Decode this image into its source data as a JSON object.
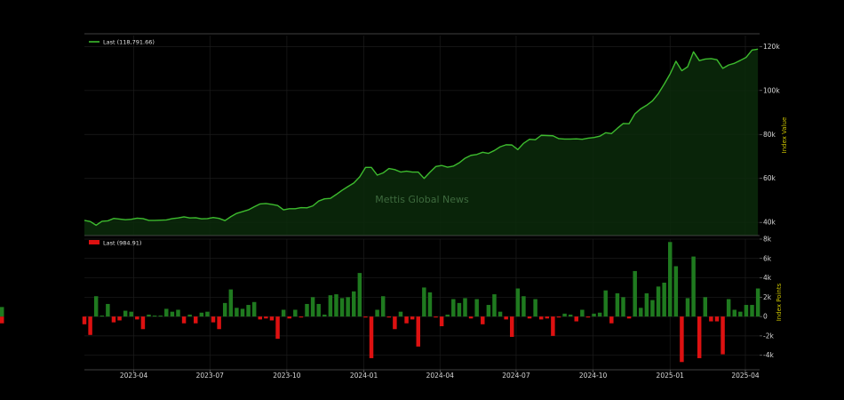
{
  "watermark": "Mettis Global News",
  "chart_data": [
    {
      "type": "area",
      "legend": "Last (118,791.66)",
      "ylabel": "Index Value",
      "line_color": "#3dbb2e",
      "fill_color": "#0a2a0a",
      "grid": true,
      "legend_position": "top-left",
      "ylim": [
        34000,
        125000
      ],
      "yticks": [
        40000,
        60000,
        80000,
        100000,
        120000
      ],
      "ytick_labels": [
        "40k",
        "60k",
        "80k",
        "100k",
        "120k"
      ],
      "x": [
        "2023-02-01",
        "2023-02-08",
        "2023-02-15",
        "2023-02-22",
        "2023-03-01",
        "2023-03-08",
        "2023-03-15",
        "2023-03-22",
        "2023-03-29",
        "2023-04-05",
        "2023-04-12",
        "2023-04-19",
        "2023-04-26",
        "2023-05-03",
        "2023-05-10",
        "2023-05-17",
        "2023-05-24",
        "2023-05-31",
        "2023-06-07",
        "2023-06-14",
        "2023-06-21",
        "2023-06-28",
        "2023-07-05",
        "2023-07-12",
        "2023-07-19",
        "2023-07-26",
        "2023-08-02",
        "2023-08-09",
        "2023-08-16",
        "2023-08-23",
        "2023-08-30",
        "2023-09-06",
        "2023-09-13",
        "2023-09-20",
        "2023-09-27",
        "2023-10-04",
        "2023-10-11",
        "2023-10-18",
        "2023-10-25",
        "2023-11-01",
        "2023-11-08",
        "2023-11-15",
        "2023-11-22",
        "2023-11-29",
        "2023-12-06",
        "2023-12-13",
        "2023-12-20",
        "2023-12-27",
        "2024-01-03",
        "2024-01-10",
        "2024-01-17",
        "2024-01-24",
        "2024-01-31",
        "2024-02-07",
        "2024-02-14",
        "2024-02-21",
        "2024-02-28",
        "2024-03-06",
        "2024-03-13",
        "2024-03-20",
        "2024-03-27",
        "2024-04-03",
        "2024-04-10",
        "2024-04-17",
        "2024-04-24",
        "2024-05-01",
        "2024-05-08",
        "2024-05-15",
        "2024-05-22",
        "2024-05-29",
        "2024-06-05",
        "2024-06-12",
        "2024-06-19",
        "2024-06-26",
        "2024-07-03",
        "2024-07-10",
        "2024-07-17",
        "2024-07-24",
        "2024-07-31",
        "2024-08-07",
        "2024-08-14",
        "2024-08-21",
        "2024-08-28",
        "2024-09-04",
        "2024-09-11",
        "2024-09-18",
        "2024-09-25",
        "2024-10-02",
        "2024-10-09",
        "2024-10-16",
        "2024-10-23",
        "2024-10-30",
        "2024-11-06",
        "2024-11-13",
        "2024-11-20",
        "2024-11-27",
        "2024-12-04",
        "2024-12-11",
        "2024-12-18",
        "2024-12-25",
        "2025-01-01",
        "2025-01-08",
        "2025-01-15",
        "2025-01-22",
        "2025-01-29",
        "2025-02-05",
        "2025-02-12",
        "2025-02-19",
        "2025-02-26",
        "2025-03-05",
        "2025-03-12",
        "2025-03-19",
        "2025-03-26",
        "2025-04-02",
        "2025-04-09",
        "2025-04-16"
      ],
      "values": [
        40900,
        40400,
        38700,
        40500,
        40700,
        41800,
        41500,
        41200,
        41400,
        41900,
        41700,
        40900,
        40900,
        41000,
        41100,
        41700,
        42000,
        42500,
        42000,
        42100,
        41600,
        41700,
        42200,
        41800,
        40800,
        42600,
        44100,
        44900,
        45700,
        47100,
        48400,
        48600,
        48200,
        47700,
        45700,
        46200,
        46200,
        46700,
        46600,
        47500,
        49700,
        50700,
        50900,
        52700,
        54600,
        56300,
        57900,
        60700,
        65000,
        65000,
        61500,
        62500,
        64500,
        64000,
        62900,
        63300,
        62900,
        62900,
        60000,
        62800,
        65400,
        65900,
        65100,
        65600,
        67100,
        69200,
        70500,
        70900,
        71900,
        71400,
        72700,
        74400,
        75300,
        75200,
        73100,
        76000,
        77800,
        77600,
        79600,
        79500,
        79400,
        78100,
        77900,
        77900,
        78000,
        77800,
        78300,
        78600,
        79200,
        80800,
        80400,
        82800,
        85000,
        84900,
        89400,
        91700,
        93300,
        95300,
        98600,
        102900,
        107500,
        113300,
        109000,
        110800,
        117600,
        113600,
        114300,
        114500,
        114000,
        110100,
        111600,
        112400,
        113700,
        115100,
        118400,
        118791.66
      ]
    },
    {
      "type": "bar",
      "legend": "Last (984.91)",
      "ylabel": "Index Points",
      "positive_color": "#1f7a1f",
      "negative_color": "#dd1111",
      "grid": true,
      "legend_position": "top-left",
      "ylim": [
        -5500,
        8000
      ],
      "yticks": [
        -4000,
        -2000,
        0,
        2000,
        4000,
        6000,
        8000
      ],
      "ytick_labels": [
        "-4k",
        "-2k",
        "0",
        "2k",
        "4k",
        "6k",
        "8k"
      ],
      "values": [
        -800,
        -1900,
        2100,
        100,
        1300,
        -600,
        -400,
        600,
        500,
        -300,
        -1300,
        200,
        100,
        100,
        800,
        500,
        700,
        -700,
        200,
        -700,
        400,
        500,
        -600,
        -1300,
        1400,
        2800,
        900,
        800,
        1200,
        1500,
        -300,
        -200,
        -400,
        -2300,
        700,
        -200,
        700,
        -100,
        1300,
        2000,
        1300,
        200,
        2200,
        2300,
        1900,
        2000,
        2600,
        4500,
        -100,
        -4300,
        700,
        2100,
        -100,
        -1300,
        500,
        -700,
        -300,
        -3100,
        3000,
        2500,
        -100,
        -1000,
        200,
        1800,
        1400,
        1900,
        -200,
        1800,
        -800,
        1200,
        2300,
        500,
        -300,
        -2100,
        2900,
        2100,
        -200,
        1800,
        -300,
        -200,
        -2000,
        -100,
        300,
        200,
        -500,
        700,
        -100,
        300,
        400,
        2700,
        -700,
        2400,
        2000,
        -200,
        4700,
        900,
        2400,
        1700,
        3100,
        3500,
        7700,
        5200,
        -4700,
        1900,
        6200,
        -4300,
        2000,
        -500,
        -500,
        -3900,
        1800,
        700,
        500,
        1200,
        1200,
        2900,
        -700,
        984.91
      ]
    }
  ],
  "x_axis": {
    "tick_labels": [
      "2023-04",
      "2023-07",
      "2023-10",
      "2024-01",
      "2024-04",
      "2024-07",
      "2024-10",
      "2025-01",
      "2025-04"
    ],
    "tick_dates": [
      "2023-04-01",
      "2023-07-01",
      "2023-10-01",
      "2024-01-01",
      "2024-04-01",
      "2024-07-01",
      "2024-10-01",
      "2025-01-01",
      "2025-04-01"
    ],
    "range": [
      "2023-02-01",
      "2025-04-18"
    ]
  }
}
